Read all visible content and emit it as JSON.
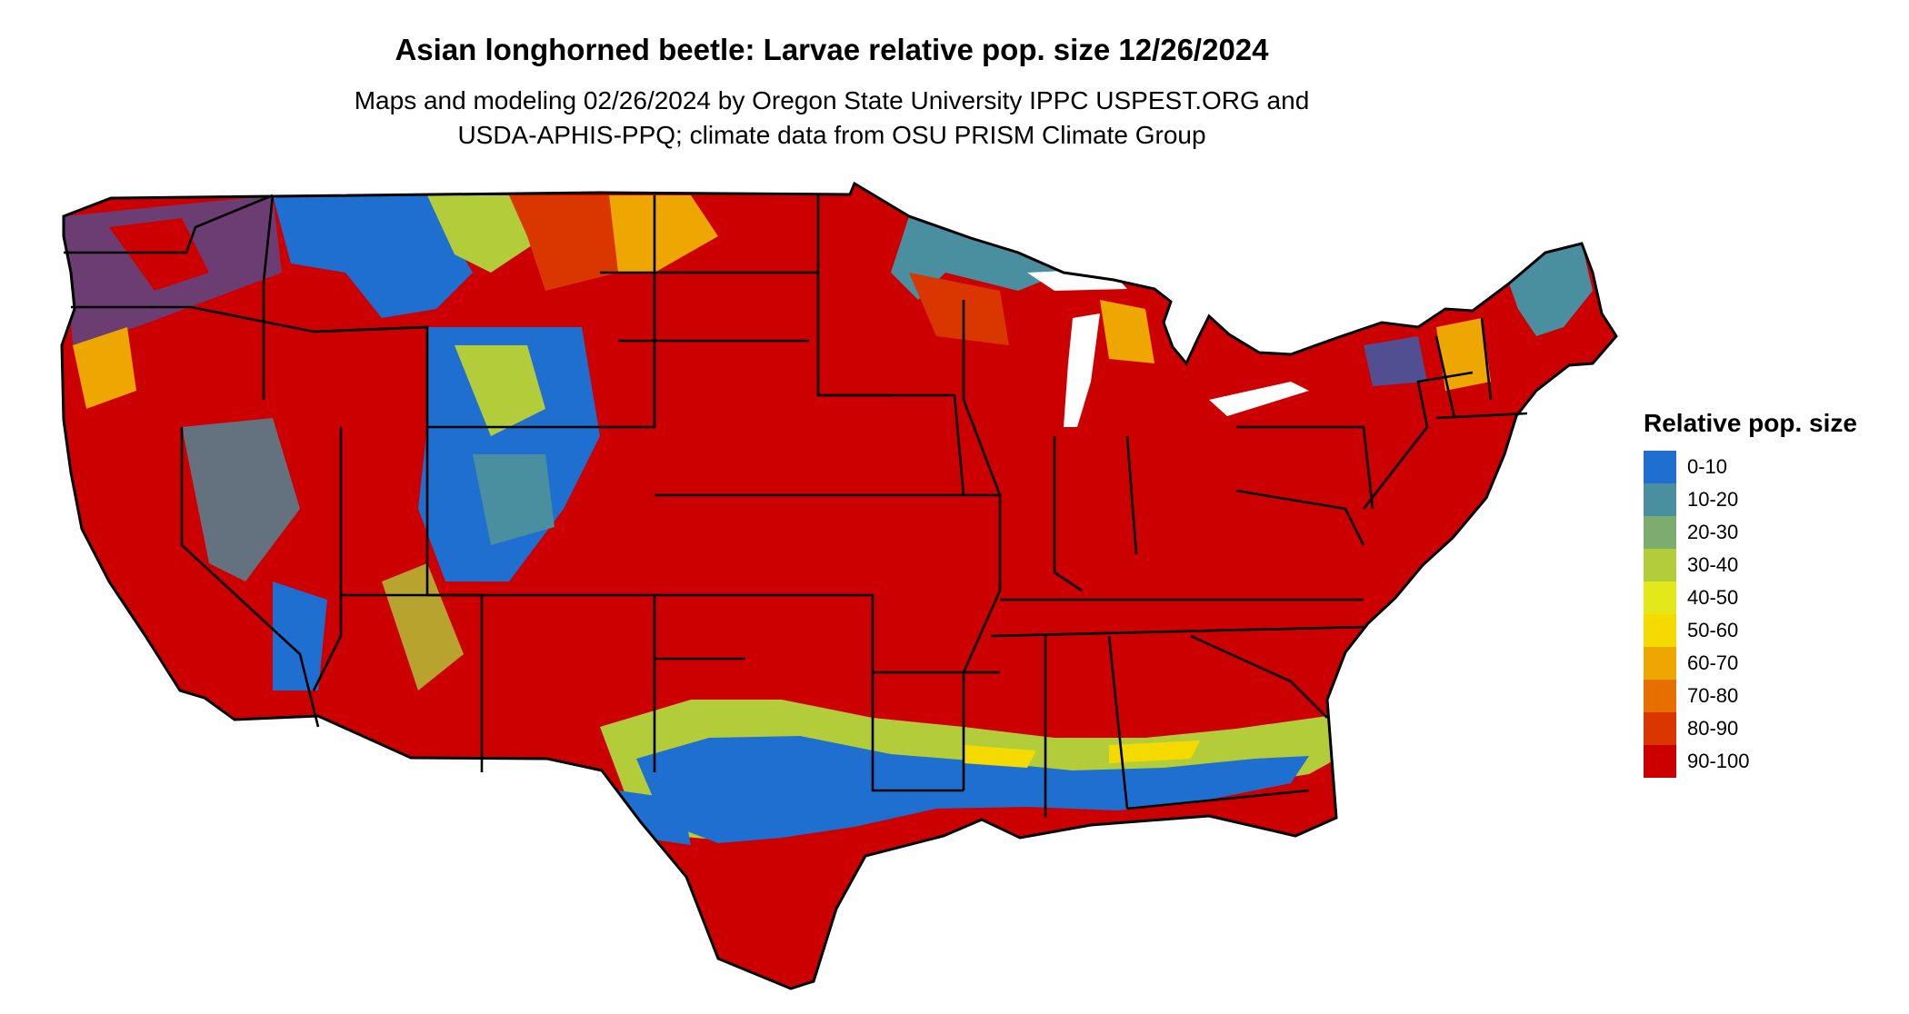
{
  "title": "Asian longhorned beetle: Larvae relative pop. size 12/26/2024",
  "subtitle_line1": "Maps and modeling 02/26/2024 by Oregon State University IPPC USPEST.ORG and",
  "subtitle_line2": "USDA-APHIS-PPQ; climate data from OSU PRISM Climate Group",
  "legend": {
    "title": "Relative pop. size",
    "items": [
      {
        "label": "0-10",
        "color": "#1E6FD0"
      },
      {
        "label": "10-20",
        "color": "#4A8FA0"
      },
      {
        "label": "20-30",
        "color": "#7DAD6E"
      },
      {
        "label": "30-40",
        "color": "#B3CC3A"
      },
      {
        "label": "40-50",
        "color": "#E3E81A"
      },
      {
        "label": "50-60",
        "color": "#F5DA00"
      },
      {
        "label": "60-70",
        "color": "#EEA600"
      },
      {
        "label": "70-80",
        "color": "#E57000"
      },
      {
        "label": "80-90",
        "color": "#D93600"
      },
      {
        "label": "90-100",
        "color": "#CC0000"
      }
    ]
  }
}
